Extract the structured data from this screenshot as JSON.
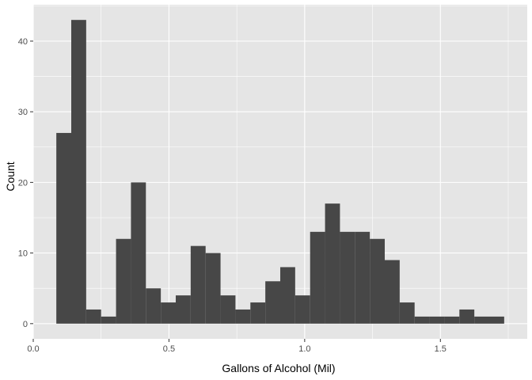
{
  "chart_data": {
    "type": "bar",
    "title": "",
    "xlabel": "Gallons of Alcohol (Mil)",
    "ylabel": "Count",
    "xlim": [
      0,
      1.82
    ],
    "ylim": [
      -2.15,
      45.15
    ],
    "x_ticks": [
      0.0,
      0.5,
      1.0,
      1.5
    ],
    "x_tick_labels": [
      "0.0",
      "0.5",
      "1.0",
      "1.5"
    ],
    "y_ticks": [
      0,
      10,
      20,
      30,
      40
    ],
    "y_tick_labels": [
      "0",
      "10",
      "20",
      "30",
      "40"
    ],
    "grid": true,
    "bin_width": 0.055,
    "bins": [
      {
        "x0": 0.085,
        "x1": 0.14,
        "count": 27
      },
      {
        "x0": 0.14,
        "x1": 0.195,
        "count": 43
      },
      {
        "x0": 0.195,
        "x1": 0.25,
        "count": 2
      },
      {
        "x0": 0.25,
        "x1": 0.305,
        "count": 1
      },
      {
        "x0": 0.305,
        "x1": 0.36,
        "count": 12
      },
      {
        "x0": 0.36,
        "x1": 0.415,
        "count": 20
      },
      {
        "x0": 0.415,
        "x1": 0.47,
        "count": 5
      },
      {
        "x0": 0.47,
        "x1": 0.525,
        "count": 3
      },
      {
        "x0": 0.525,
        "x1": 0.58,
        "count": 4
      },
      {
        "x0": 0.58,
        "x1": 0.635,
        "count": 11
      },
      {
        "x0": 0.635,
        "x1": 0.69,
        "count": 10
      },
      {
        "x0": 0.69,
        "x1": 0.745,
        "count": 4
      },
      {
        "x0": 0.745,
        "x1": 0.8,
        "count": 2
      },
      {
        "x0": 0.8,
        "x1": 0.855,
        "count": 3
      },
      {
        "x0": 0.855,
        "x1": 0.91,
        "count": 6
      },
      {
        "x0": 0.91,
        "x1": 0.965,
        "count": 8
      },
      {
        "x0": 0.965,
        "x1": 1.02,
        "count": 4
      },
      {
        "x0": 1.02,
        "x1": 1.075,
        "count": 13
      },
      {
        "x0": 1.075,
        "x1": 1.13,
        "count": 17
      },
      {
        "x0": 1.13,
        "x1": 1.185,
        "count": 13
      },
      {
        "x0": 1.185,
        "x1": 1.24,
        "count": 13
      },
      {
        "x0": 1.24,
        "x1": 1.295,
        "count": 12
      },
      {
        "x0": 1.295,
        "x1": 1.35,
        "count": 9
      },
      {
        "x0": 1.35,
        "x1": 1.405,
        "count": 3
      },
      {
        "x0": 1.405,
        "x1": 1.46,
        "count": 1
      },
      {
        "x0": 1.46,
        "x1": 1.515,
        "count": 1
      },
      {
        "x0": 1.515,
        "x1": 1.57,
        "count": 1
      },
      {
        "x0": 1.57,
        "x1": 1.625,
        "count": 2
      },
      {
        "x0": 1.625,
        "x1": 1.68,
        "count": 1
      },
      {
        "x0": 1.68,
        "x1": 1.735,
        "count": 1
      }
    ],
    "colors": {
      "panel_background": "#e5e5e5",
      "grid_major": "#ffffff",
      "bar_fill": "#474747",
      "tick_text": "#4d4d4d",
      "tick_mark": "#333333",
      "axis_title": "#000000"
    }
  }
}
